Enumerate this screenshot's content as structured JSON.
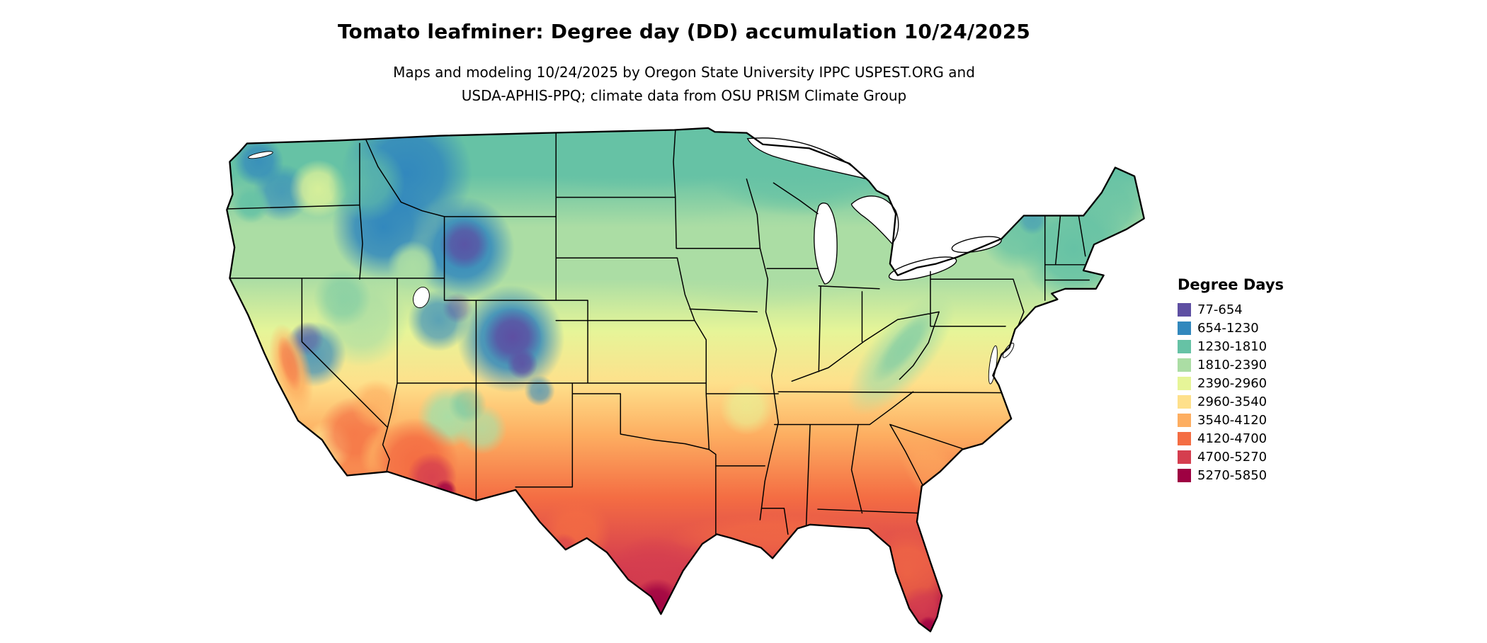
{
  "title": "Tomato leafminer: Degree day (DD) accumulation 10/24/2025",
  "subtitle": {
    "line1": "Maps and modeling 10/24/2025 by Oregon State University IPPC USPEST.ORG and",
    "line2": "USDA-APHIS-PPQ; climate data from OSU PRISM Climate Group"
  },
  "legend": {
    "title": "Degree Days",
    "entries": [
      {
        "label": "77-654",
        "color": "#5e4fa2"
      },
      {
        "label": "654-1230",
        "color": "#3288bd"
      },
      {
        "label": "1230-1810",
        "color": "#66c2a5"
      },
      {
        "label": "1810-2390",
        "color": "#abdda4"
      },
      {
        "label": "2390-2960",
        "color": "#e6f598"
      },
      {
        "label": "2960-3540",
        "color": "#fee08b"
      },
      {
        "label": "3540-4120",
        "color": "#fdae61"
      },
      {
        "label": "4120-4700",
        "color": "#f46d43"
      },
      {
        "label": "4700-5270",
        "color": "#d53e4f"
      },
      {
        "label": "5270-5850",
        "color": "#9e0142"
      }
    ]
  },
  "map": {
    "region": "Continental United States"
  }
}
